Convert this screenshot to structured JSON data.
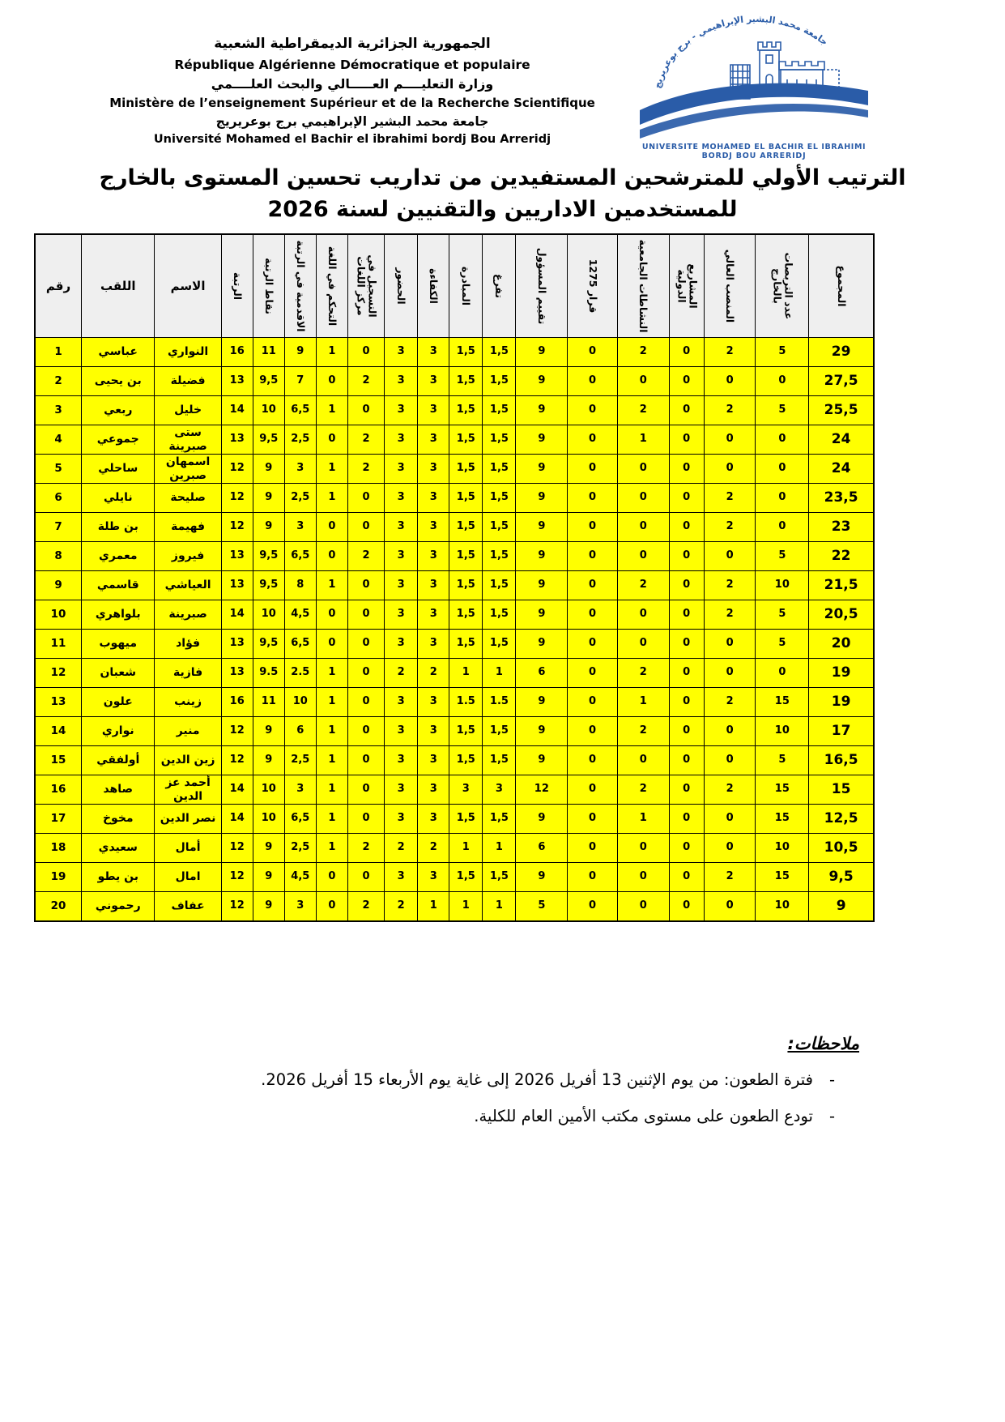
{
  "header": {
    "line1": "الجمهورية الجزائرية الديمقراطية الشعبية",
    "line2": "République Algérienne Démocratique et populaire",
    "line3": "وزارة التعليــــم العـــــالي والبحث العلــــمي",
    "line4": "Ministère de l’enseignement Supérieur et de la Recherche Scientifique",
    "line5": "جامعة محمد البشير الإبراهيمي برج بوعريريج",
    "line6": "Université Mohamed el Bachir el ibrahimi bordj Bou Arreridj"
  },
  "logo": {
    "arc_text": "جامعة محمد البشير الإبراهيمي - برج بوعريريج",
    "caption_line1": "UNIVERSITE MOHAMED EL BACHIR EL IBRAHIMI",
    "caption_line2": "BORDJ BOU ARRERIDJ",
    "color": "#2a5ca8"
  },
  "title": {
    "line1": "الترتيب الأولي للمترشحين المستفيدين من تداريب تحسين المستوى بالخارج",
    "line2": "للمستخدمين الاداريين والتقنيين لسنة 2026"
  },
  "table": {
    "header_bg": "#efefef",
    "cell_bg": "#ffff00",
    "columns": [
      {
        "label": "رقم",
        "rotated": false
      },
      {
        "label": "اللقب",
        "rotated": false
      },
      {
        "label": "الاسم",
        "rotated": false
      },
      {
        "label": "الرتبة",
        "rotated": true
      },
      {
        "label": "نقاط الرتبة",
        "rotated": true
      },
      {
        "label": "الاقدمية في الرتبة",
        "rotated": true
      },
      {
        "label": "التحكم في اللغة",
        "rotated": true
      },
      {
        "label": "التسجيل في\nمركز اللغات",
        "rotated": true
      },
      {
        "label": "الحضور",
        "rotated": true
      },
      {
        "label": "الكفاءة",
        "rotated": true
      },
      {
        "label": "المبادرة",
        "rotated": true
      },
      {
        "label": "تفرغ",
        "rotated": true
      },
      {
        "label": "تقييم المسؤول",
        "rotated": true
      },
      {
        "label": "قرار 1275",
        "rotated": true
      },
      {
        "label": "النشاطات الجامعية",
        "rotated": true
      },
      {
        "label": "المشاريع\nالدولية",
        "rotated": true
      },
      {
        "label": "المنصب العالي",
        "rotated": true
      },
      {
        "label": "عدد التربصات\nبالخارج",
        "rotated": true
      },
      {
        "label": "المجموع",
        "rotated": true
      }
    ],
    "rows": [
      [
        "1",
        "عباسي",
        "النواري",
        "16",
        "11",
        "9",
        "1",
        "0",
        "3",
        "3",
        "1,5",
        "1,5",
        "9",
        "0",
        "2",
        "0",
        "2",
        "5",
        "29"
      ],
      [
        "2",
        "بن يحيى",
        "فضيلة",
        "13",
        "9,5",
        "7",
        "0",
        "2",
        "3",
        "3",
        "1,5",
        "1,5",
        "9",
        "0",
        "0",
        "0",
        "0",
        "0",
        "27,5"
      ],
      [
        "3",
        "ربعي",
        "خليل",
        "14",
        "10",
        "6,5",
        "1",
        "0",
        "3",
        "3",
        "1,5",
        "1,5",
        "9",
        "0",
        "2",
        "0",
        "2",
        "5",
        "25,5"
      ],
      [
        "4",
        "جموعي",
        "ستى صبرينة",
        "13",
        "9,5",
        "2,5",
        "0",
        "2",
        "3",
        "3",
        "1,5",
        "1,5",
        "9",
        "0",
        "1",
        "0",
        "0",
        "0",
        "24"
      ],
      [
        "5",
        "ساحلي",
        "اسمهان صبرين",
        "12",
        "9",
        "3",
        "1",
        "2",
        "3",
        "3",
        "1,5",
        "1,5",
        "9",
        "0",
        "0",
        "0",
        "0",
        "0",
        "24"
      ],
      [
        "6",
        "نايلي",
        "صليحة",
        "12",
        "9",
        "2,5",
        "1",
        "0",
        "3",
        "3",
        "1,5",
        "1,5",
        "9",
        "0",
        "0",
        "0",
        "2",
        "0",
        "23,5"
      ],
      [
        "7",
        "بن طلة",
        "فهيمة",
        "12",
        "9",
        "3",
        "0",
        "0",
        "3",
        "3",
        "1,5",
        "1,5",
        "9",
        "0",
        "0",
        "0",
        "2",
        "0",
        "23"
      ],
      [
        "8",
        "معمري",
        "فيروز",
        "13",
        "9,5",
        "6,5",
        "0",
        "2",
        "3",
        "3",
        "1,5",
        "1,5",
        "9",
        "0",
        "0",
        "0",
        "0",
        "5",
        "22"
      ],
      [
        "9",
        "قاسمي",
        "العياشي",
        "13",
        "9,5",
        "8",
        "1",
        "0",
        "3",
        "3",
        "1,5",
        "1,5",
        "9",
        "0",
        "2",
        "0",
        "2",
        "10",
        "21,5"
      ],
      [
        "10",
        "بلواهري",
        "صبرينة",
        "14",
        "10",
        "4,5",
        "0",
        "0",
        "3",
        "3",
        "1,5",
        "1,5",
        "9",
        "0",
        "0",
        "0",
        "2",
        "5",
        "20,5"
      ],
      [
        "11",
        "ميهوب",
        "فؤاد",
        "13",
        "9,5",
        "6,5",
        "0",
        "0",
        "3",
        "3",
        "1,5",
        "1,5",
        "9",
        "0",
        "0",
        "0",
        "0",
        "5",
        "20"
      ],
      [
        "12",
        "شعبان",
        "فازية",
        "13",
        "9.5",
        "2.5",
        "1",
        "0",
        "2",
        "2",
        "1",
        "1",
        "6",
        "0",
        "2",
        "0",
        "0",
        "0",
        "19"
      ],
      [
        "13",
        "علون",
        "زينب",
        "16",
        "11",
        "10",
        "1",
        "0",
        "3",
        "3",
        "1.5",
        "1.5",
        "9",
        "0",
        "1",
        "0",
        "2",
        "15",
        "19"
      ],
      [
        "14",
        "نواري",
        "منير",
        "12",
        "9",
        "6",
        "1",
        "0",
        "3",
        "3",
        "1,5",
        "1,5",
        "9",
        "0",
        "2",
        "0",
        "0",
        "10",
        "17"
      ],
      [
        "15",
        "أولفقي",
        "زين الدين",
        "12",
        "9",
        "2,5",
        "1",
        "0",
        "3",
        "3",
        "1,5",
        "1,5",
        "9",
        "0",
        "0",
        "0",
        "0",
        "5",
        "16,5"
      ],
      [
        "16",
        "صاهد",
        "أحمد عز الدين",
        "14",
        "10",
        "3",
        "1",
        "0",
        "3",
        "3",
        "3",
        "3",
        "12",
        "0",
        "2",
        "0",
        "2",
        "15",
        "15"
      ],
      [
        "17",
        "مخوخ",
        "نصر الدين",
        "14",
        "10",
        "6,5",
        "1",
        "0",
        "3",
        "3",
        "1,5",
        "1,5",
        "9",
        "0",
        "1",
        "0",
        "0",
        "15",
        "12,5"
      ],
      [
        "18",
        "سعيدي",
        "أمال",
        "12",
        "9",
        "2,5",
        "1",
        "2",
        "2",
        "2",
        "1",
        "1",
        "6",
        "0",
        "0",
        "0",
        "0",
        "10",
        "10,5"
      ],
      [
        "19",
        "بن يطو",
        "امال",
        "12",
        "9",
        "4,5",
        "0",
        "0",
        "3",
        "3",
        "1,5",
        "1,5",
        "9",
        "0",
        "0",
        "0",
        "2",
        "15",
        "9,5"
      ],
      [
        "20",
        "رحموني",
        "عفاف",
        "12",
        "9",
        "3",
        "0",
        "2",
        "2",
        "1",
        "1",
        "1",
        "5",
        "0",
        "0",
        "0",
        "0",
        "10",
        "9"
      ]
    ]
  },
  "notes": {
    "title": "ملاحظات:",
    "items": [
      "فترة الطعون: من يوم الإثنين 13 أفريل 2026 إلى غاية يوم الأربعاء 15 أفريل 2026.",
      "تودع الطعون على مستوى مكتب الأمين العام للكلية."
    ]
  }
}
